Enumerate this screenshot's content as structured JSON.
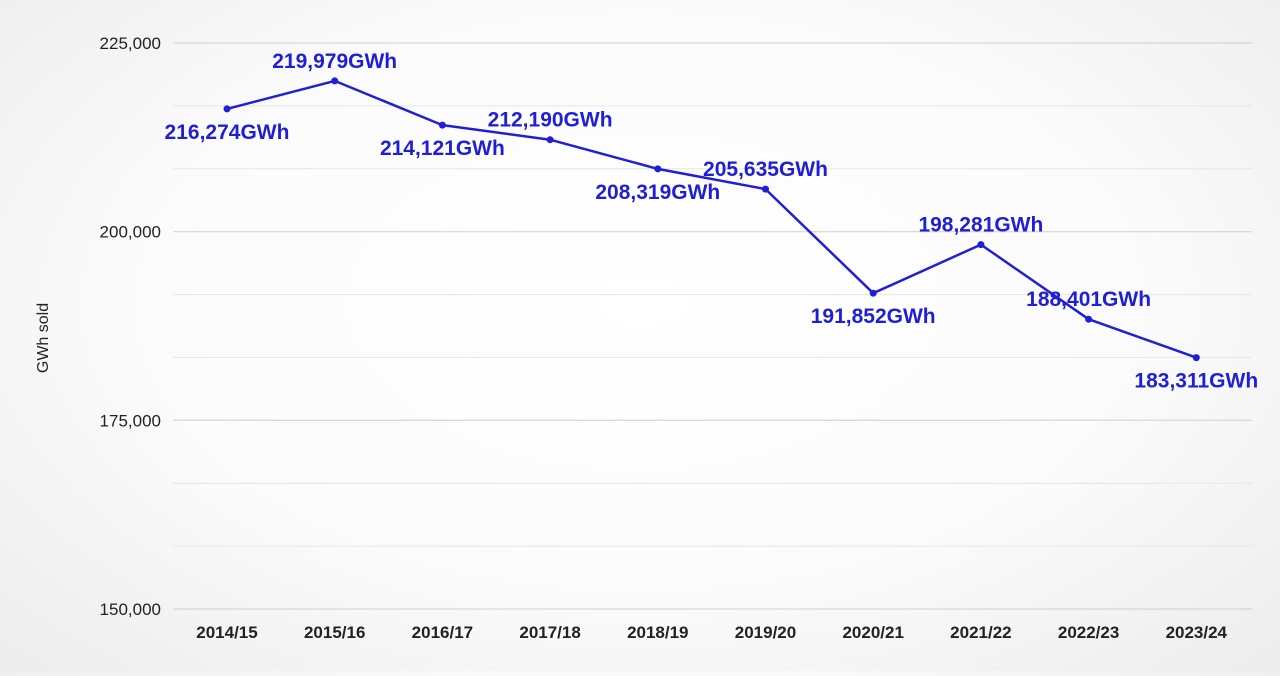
{
  "chart_data": {
    "type": "line",
    "title": "",
    "xlabel": "",
    "ylabel": "GWh sold",
    "categories": [
      "2014/15",
      "2015/16",
      "2016/17",
      "2017/18",
      "2018/19",
      "2019/20",
      "2020/21",
      "2021/22",
      "2022/23",
      "2023/24"
    ],
    "series": [
      {
        "values": [
          216274,
          219979,
          214121,
          212190,
          208319,
          205635,
          191852,
          198281,
          188401,
          183311
        ],
        "labels": [
          "216,274GWh",
          "219,979GWh",
          "214,121GWh",
          "212,190GWh",
          "208,319GWh",
          "205,635GWh",
          "191,852GWh",
          "198,281GWh",
          "188,401GWh",
          "183,311GWh"
        ],
        "color": "#1f1fd6"
      }
    ],
    "ylim": [
      150000,
      225000
    ],
    "yticks": [
      150000,
      175000,
      200000,
      225000
    ],
    "ytick_labels": [
      "150,000",
      "175,000",
      "200,000",
      "225,000"
    ],
    "minor_gridlines": true,
    "grid": true,
    "legend": "none"
  }
}
